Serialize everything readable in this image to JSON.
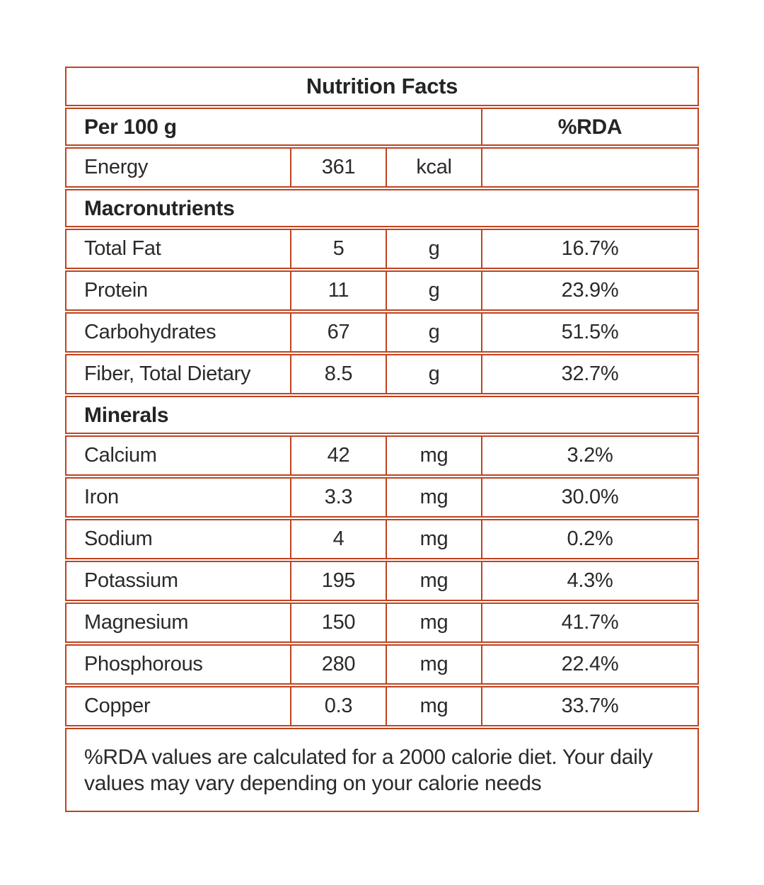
{
  "colors": {
    "border": "#bf4320",
    "text": "#2c2a29",
    "heading_text": "#262423",
    "background": "#ffffff"
  },
  "table": {
    "title": "Nutrition Facts",
    "header": {
      "serving": "Per 100 g",
      "rda": "%RDA"
    },
    "energy": {
      "name": "Energy",
      "value": "361",
      "unit": "kcal",
      "rda": ""
    },
    "sections": [
      {
        "label": "Macronutrients",
        "rows": [
          {
            "name": "Total Fat",
            "value": "5",
            "unit": "g",
            "rda": "16.7%"
          },
          {
            "name": "Protein",
            "value": "11",
            "unit": "g",
            "rda": "23.9%"
          },
          {
            "name": "Carbohydrates",
            "value": "67",
            "unit": "g",
            "rda": "51.5%"
          },
          {
            "name": "Fiber, Total Dietary",
            "value": "8.5",
            "unit": "g",
            "rda": "32.7%"
          }
        ]
      },
      {
        "label": "Minerals",
        "rows": [
          {
            "name": "Calcium",
            "value": "42",
            "unit": "mg",
            "rda": "3.2%"
          },
          {
            "name": "Iron",
            "value": "3.3",
            "unit": "mg",
            "rda": "30.0%"
          },
          {
            "name": "Sodium",
            "value": "4",
            "unit": "mg",
            "rda": "0.2%"
          },
          {
            "name": "Potassium",
            "value": "195",
            "unit": "mg",
            "rda": "4.3%"
          },
          {
            "name": "Magnesium",
            "value": "150",
            "unit": "mg",
            "rda": "41.7%"
          },
          {
            "name": "Phosphorous",
            "value": "280",
            "unit": "mg",
            "rda": "22.4%"
          },
          {
            "name": "Copper",
            "value": "0.3",
            "unit": "mg",
            "rda": "33.7%"
          }
        ]
      }
    ],
    "footnote": "%RDA values are calculated for a 2000 calorie diet. Your daily values may vary depending on your calorie needs"
  }
}
